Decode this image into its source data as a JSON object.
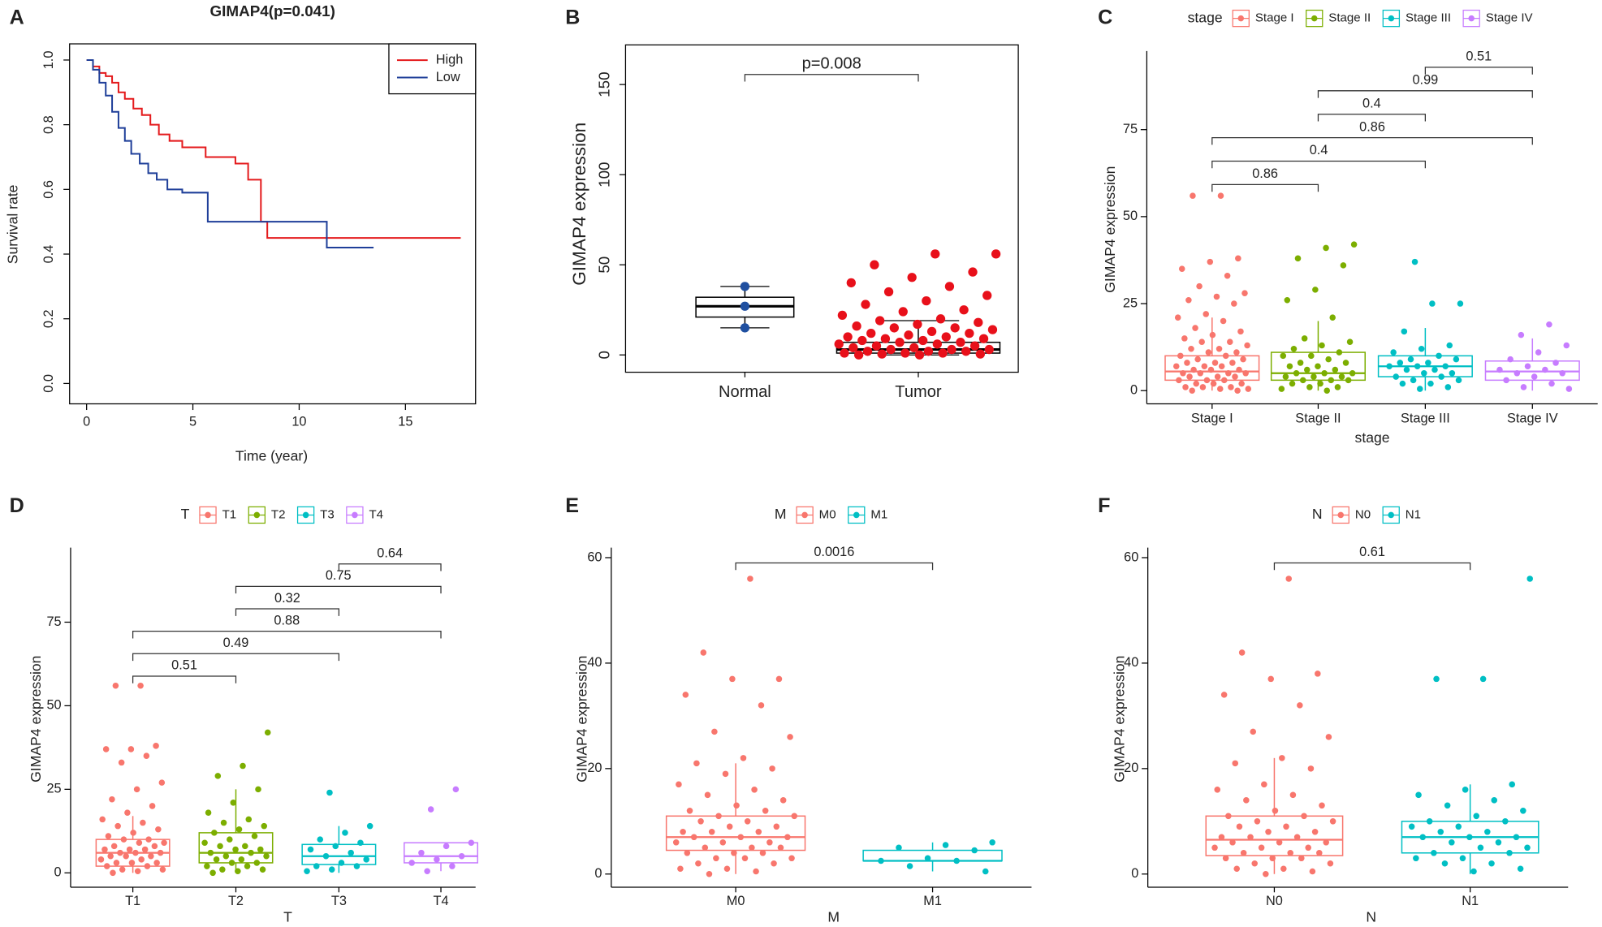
{
  "chart_data": [
    {
      "type": "line",
      "panel": "A",
      "title": "GIMAP4(p=0.041)",
      "x_label": "Time (year)",
      "y_label": "Survival rate",
      "xlim": [
        -0.8,
        18.3
      ],
      "xticks": [
        0,
        5,
        10,
        15
      ],
      "ylim": [
        -0.063,
        1.05
      ],
      "yticks": [
        {
          "value": 0,
          "label": "0.0"
        },
        {
          "value": 0.2,
          "label": "0.2"
        },
        {
          "value": 0.4,
          "label": "0.4"
        },
        {
          "value": 0.6,
          "label": "0.6"
        },
        {
          "value": 0.8,
          "label": "0.8"
        },
        {
          "value": 1,
          "label": "1.0"
        }
      ],
      "legend": "topright",
      "series": [
        {
          "name": "High",
          "color": "#e41a1c",
          "x": [
            0,
            0.3,
            0.6,
            0.9,
            1.2,
            1.5,
            1.8,
            2.2,
            2.6,
            3.0,
            3.4,
            3.9,
            4.5,
            5.6,
            7.0,
            7.6,
            8.2,
            8.5,
            17.6
          ],
          "values": [
            1,
            0.98,
            0.96,
            0.95,
            0.93,
            0.9,
            0.88,
            0.85,
            0.83,
            0.8,
            0.77,
            0.75,
            0.73,
            0.7,
            0.68,
            0.63,
            0.5,
            0.45,
            0.45
          ]
        },
        {
          "name": "Low",
          "color": "#1f3f99",
          "x": [
            0,
            0.3,
            0.6,
            0.9,
            1.2,
            1.5,
            1.8,
            2.1,
            2.5,
            2.9,
            3.3,
            3.8,
            4.5,
            5.7,
            11.3,
            13.5
          ],
          "values": [
            1,
            0.97,
            0.93,
            0.89,
            0.84,
            0.79,
            0.75,
            0.71,
            0.68,
            0.65,
            0.63,
            0.6,
            0.59,
            0.5,
            0.42,
            0.42
          ]
        }
      ]
    },
    {
      "type": "box",
      "panel": "B",
      "y_label": "GIMAP4 expression",
      "ylim": [
        -9.6,
        172
      ],
      "yticks": [
        0,
        50,
        100,
        150
      ],
      "groups": [
        {
          "name": "Normal",
          "color": "#000000",
          "point_color": "#1f4fa0",
          "min": 15,
          "q1": 21,
          "median": 27,
          "q3": 32,
          "max": 38,
          "points": [
            15,
            27,
            38
          ]
        },
        {
          "name": "Tumor",
          "color": "#000000",
          "point_color": "#e8101a",
          "min": 0,
          "q1": 1,
          "median": 3,
          "q3": 7,
          "max": 19,
          "points": [
            56,
            56,
            50,
            46,
            43,
            40,
            38,
            35,
            33,
            30,
            28,
            25,
            24,
            22,
            20,
            19,
            18,
            17,
            16,
            15,
            15,
            14,
            13,
            12,
            12,
            11,
            10,
            10,
            9,
            9,
            8,
            8,
            7,
            7,
            6,
            6,
            5,
            5,
            4,
            4,
            3,
            3,
            3,
            2,
            2,
            2,
            1,
            1,
            1,
            0.5,
            0.5,
            0,
            0
          ]
        }
      ],
      "comparisons": [
        {
          "groups": [
            "Normal",
            "Tumor"
          ],
          "label": "p=0.008"
        }
      ]
    },
    {
      "type": "box",
      "panel": "C",
      "x_label": "stage",
      "y_label": "GIMAP4 expression",
      "legend_title": "stage",
      "ylim": [
        -3.8,
        97.6
      ],
      "yticks": [
        0,
        25,
        50,
        75
      ],
      "groups": [
        {
          "name": "Stage I",
          "color": "#F8766D",
          "min": 0,
          "q1": 3,
          "median": 5.5,
          "q3": 10,
          "max": 21,
          "points": [
            56,
            56,
            38,
            37,
            35,
            33,
            30,
            28,
            27,
            26,
            25,
            22,
            21,
            20,
            18,
            17,
            16,
            15,
            14,
            14,
            13,
            12,
            12,
            11,
            11,
            10,
            10,
            9,
            9,
            8,
            8,
            8,
            7,
            7,
            7,
            6,
            6,
            6,
            5,
            5,
            5,
            5,
            4,
            4,
            4,
            3,
            3,
            3,
            2,
            2,
            2,
            1,
            1,
            1,
            0.5,
            0.5,
            0,
            0
          ]
        },
        {
          "name": "Stage II",
          "color": "#7CAE00",
          "min": 0,
          "q1": 3,
          "median": 5,
          "q3": 11,
          "max": 20,
          "points": [
            42,
            41,
            38,
            36,
            29,
            26,
            21,
            15,
            14,
            13,
            12,
            11,
            10,
            10,
            9,
            8,
            8,
            7,
            7,
            6,
            6,
            5,
            5,
            5,
            4,
            4,
            4,
            3,
            3,
            3,
            2,
            2,
            1,
            1,
            0.5,
            0
          ]
        },
        {
          "name": "Stage III",
          "color": "#00BFC4",
          "min": 0,
          "q1": 4,
          "median": 7,
          "q3": 10,
          "max": 18,
          "points": [
            37,
            25,
            25,
            17,
            13,
            12,
            11,
            10,
            9,
            9,
            8,
            8,
            7,
            7,
            7,
            6,
            6,
            5,
            5,
            4,
            4,
            3,
            3,
            2,
            2,
            1,
            0.5
          ]
        },
        {
          "name": "Stage IV",
          "color": "#C77CFF",
          "min": 0,
          "q1": 3,
          "median": 5.5,
          "q3": 8.5,
          "max": 15,
          "points": [
            19,
            16,
            13,
            11,
            9,
            8,
            7,
            6,
            6,
            5,
            5,
            4,
            3,
            2,
            1,
            0.5
          ]
        }
      ],
      "comparisons": [
        {
          "groups": [
            "Stage I",
            "Stage II"
          ],
          "label": "0.86"
        },
        {
          "groups": [
            "Stage I",
            "Stage III"
          ],
          "label": "0.4"
        },
        {
          "groups": [
            "Stage I",
            "Stage IV"
          ],
          "label": "0.86"
        },
        {
          "groups": [
            "Stage II",
            "Stage III"
          ],
          "label": "0.4"
        },
        {
          "groups": [
            "Stage II",
            "Stage IV"
          ],
          "label": "0.99"
        },
        {
          "groups": [
            "Stage III",
            "Stage IV"
          ],
          "label": "0.51"
        }
      ]
    },
    {
      "type": "box",
      "panel": "D",
      "x_label": "T",
      "y_label": "GIMAP4 expression",
      "legend_title": "T",
      "ylim": [
        -4.3,
        97.3
      ],
      "yticks": [
        0,
        25,
        50,
        75
      ],
      "groups": [
        {
          "name": "T1",
          "color": "#F8766D",
          "min": 0,
          "q1": 2,
          "median": 6,
          "q3": 10,
          "max": 17,
          "points": [
            56,
            56,
            38,
            37,
            37,
            35,
            33,
            27,
            25,
            22,
            20,
            18,
            16,
            15,
            14,
            13,
            12,
            11,
            10,
            10,
            9,
            9,
            8,
            8,
            7,
            7,
            7,
            6,
            6,
            6,
            5,
            5,
            5,
            4,
            4,
            3,
            3,
            3,
            2,
            2,
            1,
            1,
            0.5,
            0
          ]
        },
        {
          "name": "T2",
          "color": "#7CAE00",
          "min": 0,
          "q1": 3,
          "median": 6,
          "q3": 12,
          "max": 25,
          "points": [
            42,
            32,
            29,
            25,
            21,
            18,
            16,
            15,
            14,
            13,
            12,
            11,
            10,
            9,
            8,
            8,
            7,
            7,
            6,
            6,
            5,
            5,
            4,
            4,
            3,
            3,
            2,
            2,
            1,
            1,
            0.5,
            0
          ]
        },
        {
          "name": "T3",
          "color": "#00BFC4",
          "min": 0,
          "q1": 2.5,
          "median": 5,
          "q3": 8.5,
          "max": 14,
          "points": [
            24,
            14,
            12,
            10,
            9,
            8,
            7,
            6,
            5,
            4,
            3,
            2,
            2,
            1,
            0.5
          ]
        },
        {
          "name": "T4",
          "color": "#C77CFF",
          "min": 0.5,
          "q1": 3,
          "median": 5,
          "q3": 9,
          "max": 9,
          "points": [
            25,
            19,
            9,
            8,
            6,
            5,
            4,
            3,
            2,
            0.5
          ]
        }
      ],
      "comparisons": [
        {
          "groups": [
            "T1",
            "T2"
          ],
          "label": "0.51"
        },
        {
          "groups": [
            "T1",
            "T3"
          ],
          "label": "0.49"
        },
        {
          "groups": [
            "T1",
            "T4"
          ],
          "label": "0.88"
        },
        {
          "groups": [
            "T2",
            "T3"
          ],
          "label": "0.32"
        },
        {
          "groups": [
            "T2",
            "T4"
          ],
          "label": "0.75"
        },
        {
          "groups": [
            "T3",
            "T4"
          ],
          "label": "0.64"
        }
      ]
    },
    {
      "type": "box",
      "panel": "E",
      "x_label": "M",
      "y_label": "GIMAP4 expression",
      "legend_title": "M",
      "ylim": [
        -2.5,
        61.9
      ],
      "yticks": [
        0,
        20,
        40,
        60
      ],
      "groups": [
        {
          "name": "M0",
          "color": "#F8766D",
          "min": 0,
          "q1": 4.5,
          "median": 7,
          "q3": 11,
          "max": 21,
          "points": [
            56,
            42,
            37,
            37,
            34,
            32,
            27,
            26,
            22,
            21,
            20,
            19,
            17,
            16,
            15,
            14,
            13,
            12,
            12,
            11,
            11,
            10,
            10,
            9,
            9,
            8,
            8,
            8,
            7,
            7,
            7,
            6,
            6,
            6,
            5,
            5,
            5,
            4,
            4,
            4,
            3,
            3,
            3,
            2,
            2,
            1,
            1,
            0.5,
            0
          ]
        },
        {
          "name": "M1",
          "color": "#00BFC4",
          "min": 0.5,
          "q1": 2.5,
          "median": 2.5,
          "q3": 4.5,
          "max": 6,
          "points": [
            6,
            5.5,
            5,
            4.5,
            3,
            2.5,
            2.5,
            1.5,
            0.5
          ]
        }
      ],
      "comparisons": [
        {
          "groups": [
            "M0",
            "M1"
          ],
          "label": "0.0016"
        }
      ]
    },
    {
      "type": "box",
      "panel": "F",
      "x_label": "N",
      "y_label": "GIMAP4 expression",
      "legend_title": "N",
      "ylim": [
        -2.5,
        61.9
      ],
      "yticks": [
        0,
        20,
        40,
        60
      ],
      "groups": [
        {
          "name": "N0",
          "color": "#F8766D",
          "min": 0,
          "q1": 3.5,
          "median": 6.5,
          "q3": 11,
          "max": 22,
          "points": [
            56,
            42,
            38,
            37,
            34,
            32,
            27,
            26,
            22,
            21,
            20,
            17,
            16,
            15,
            14,
            13,
            12,
            11,
            11,
            10,
            10,
            9,
            9,
            8,
            8,
            7,
            7,
            7,
            6,
            6,
            6,
            5,
            5,
            5,
            4,
            4,
            4,
            3,
            3,
            3,
            2,
            2,
            1,
            1,
            0.5,
            0
          ]
        },
        {
          "name": "N1",
          "color": "#00BFC4",
          "min": 0,
          "q1": 4,
          "median": 7,
          "q3": 10,
          "max": 17,
          "points": [
            56,
            37,
            37,
            17,
            16,
            15,
            14,
            13,
            12,
            11,
            10,
            10,
            9,
            9,
            8,
            8,
            7,
            7,
            7,
            6,
            6,
            5,
            5,
            4,
            4,
            3,
            3,
            2,
            2,
            1,
            0.5
          ]
        }
      ],
      "comparisons": [
        {
          "groups": [
            "N0",
            "N1"
          ],
          "label": "0.61"
        }
      ]
    }
  ]
}
